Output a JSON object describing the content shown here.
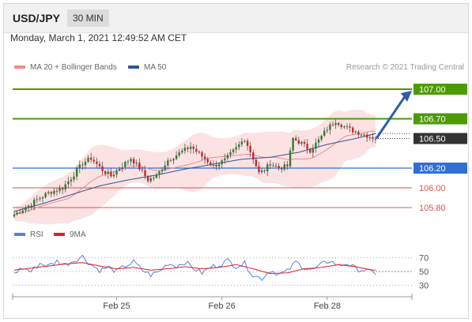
{
  "header": {
    "symbol": "USD/JPY",
    "timeframe": "30 MIN"
  },
  "date_line": "Monday, March 1, 2021 12:49:52 AM CET",
  "legend": {
    "ma_bb": {
      "label": "MA 20 + Bollinger Bands",
      "color": "#f08a8a"
    },
    "ma50": {
      "label": "MA 50",
      "color": "#2f5597"
    }
  },
  "credit": "Research © 2021 Trading Central",
  "rsi_legend": {
    "rsi": {
      "label": "RSI",
      "color": "#5b7fd6"
    },
    "ma9": {
      "label": "9MA",
      "color": "#e02020"
    }
  },
  "colors": {
    "green": "#4e9a06",
    "blue": "#2f6fd6",
    "red": "#e05050",
    "dark": "#333333",
    "up": "#2e7d32",
    "down": "#c62828"
  },
  "chart_data": [
    {
      "type": "candlestick",
      "ylim": [
        105.68,
        107.12
      ],
      "levels": [
        {
          "value": "107.00",
          "num": 107.0,
          "color": "#4e9a06",
          "kind": "resistance"
        },
        {
          "value": "106.70",
          "num": 106.7,
          "color": "#4e9a06",
          "kind": "resistance"
        },
        {
          "value": "106.50",
          "num": 106.5,
          "color": "#333333",
          "kind": "last"
        },
        {
          "value": "106.20",
          "num": 106.2,
          "color": "#2f6fd6",
          "kind": "pivot"
        },
        {
          "value": "106.00",
          "num": 106.0,
          "color": "#e05050",
          "kind": "support"
        },
        {
          "value": "105.80",
          "num": 105.8,
          "color": "#e05050",
          "kind": "support"
        }
      ],
      "price_path": [
        [
          0,
          105.73
        ],
        [
          4,
          105.8
        ],
        [
          8,
          105.88
        ],
        [
          12,
          105.95
        ],
        [
          17,
          106.0
        ],
        [
          20,
          106.1
        ],
        [
          24,
          106.25
        ],
        [
          27,
          106.3
        ],
        [
          31,
          106.18
        ],
        [
          34,
          106.12
        ],
        [
          37,
          106.2
        ],
        [
          41,
          106.3
        ],
        [
          44,
          106.2
        ],
        [
          47,
          106.08
        ],
        [
          50,
          106.12
        ],
        [
          54,
          106.28
        ],
        [
          58,
          106.35
        ],
        [
          62,
          106.42
        ],
        [
          66,
          106.32
        ],
        [
          70,
          106.22
        ],
        [
          74,
          106.28
        ],
        [
          78,
          106.4
        ],
        [
          81,
          106.5
        ],
        [
          84,
          106.3
        ],
        [
          86,
          106.15
        ],
        [
          88,
          106.18
        ],
        [
          90,
          106.25
        ],
        [
          93,
          106.2
        ],
        [
          96,
          106.22
        ],
        [
          98,
          106.5
        ],
        [
          101,
          106.45
        ],
        [
          104,
          106.38
        ],
        [
          107,
          106.48
        ],
        [
          110,
          106.6
        ],
        [
          113,
          106.68
        ],
        [
          116,
          106.62
        ],
        [
          119,
          106.58
        ],
        [
          122,
          106.55
        ],
        [
          125,
          106.52
        ],
        [
          127,
          106.5
        ]
      ],
      "ma50_path": [
        [
          0,
          105.76
        ],
        [
          10,
          105.84
        ],
        [
          20,
          105.93
        ],
        [
          30,
          106.02
        ],
        [
          40,
          106.08
        ],
        [
          50,
          106.13
        ],
        [
          60,
          106.19
        ],
        [
          70,
          106.24
        ],
        [
          80,
          106.29
        ],
        [
          90,
          106.31
        ],
        [
          100,
          106.36
        ],
        [
          110,
          106.44
        ],
        [
          120,
          106.5
        ],
        [
          127,
          106.55
        ]
      ],
      "forecast_arrow": {
        "from": 106.5,
        "to": 107.0
      }
    },
    {
      "type": "line",
      "name": "RSI",
      "ylim": [
        20,
        80
      ],
      "ticks": [
        "70",
        "50",
        "30"
      ],
      "tick_values": [
        70,
        50,
        30
      ],
      "rsi_path": [
        [
          0,
          48
        ],
        [
          3,
          55
        ],
        [
          6,
          50
        ],
        [
          9,
          62
        ],
        [
          12,
          58
        ],
        [
          15,
          65
        ],
        [
          18,
          60
        ],
        [
          21,
          66
        ],
        [
          24,
          72
        ],
        [
          27,
          60
        ],
        [
          30,
          52
        ],
        [
          33,
          56
        ],
        [
          36,
          50
        ],
        [
          39,
          58
        ],
        [
          42,
          64
        ],
        [
          45,
          52
        ],
        [
          48,
          45
        ],
        [
          51,
          50
        ],
        [
          54,
          62
        ],
        [
          57,
          58
        ],
        [
          60,
          64
        ],
        [
          63,
          55
        ],
        [
          66,
          48
        ],
        [
          69,
          56
        ],
        [
          72,
          60
        ],
        [
          75,
          66
        ],
        [
          78,
          58
        ],
        [
          81,
          62
        ],
        [
          84,
          44
        ],
        [
          87,
          40
        ],
        [
          90,
          52
        ],
        [
          93,
          46
        ],
        [
          96,
          50
        ],
        [
          99,
          64
        ],
        [
          102,
          56
        ],
        [
          105,
          52
        ],
        [
          108,
          60
        ],
        [
          111,
          66
        ],
        [
          114,
          58
        ],
        [
          117,
          62
        ],
        [
          120,
          54
        ],
        [
          123,
          52
        ],
        [
          126,
          48
        ]
      ],
      "ma9_path": [
        [
          0,
          52
        ],
        [
          6,
          55
        ],
        [
          12,
          58
        ],
        [
          18,
          61
        ],
        [
          24,
          63
        ],
        [
          30,
          58
        ],
        [
          36,
          54
        ],
        [
          42,
          56
        ],
        [
          48,
          52
        ],
        [
          54,
          54
        ],
        [
          60,
          57
        ],
        [
          66,
          54
        ],
        [
          72,
          56
        ],
        [
          78,
          60
        ],
        [
          84,
          54
        ],
        [
          90,
          47
        ],
        [
          96,
          48
        ],
        [
          102,
          54
        ],
        [
          108,
          56
        ],
        [
          114,
          60
        ],
        [
          120,
          57
        ],
        [
          126,
          52
        ]
      ]
    }
  ],
  "x_axis": {
    "labels": [
      "Feb 25",
      "Feb 26",
      "Feb 28"
    ],
    "positions": [
      36,
      73,
      110
    ]
  }
}
